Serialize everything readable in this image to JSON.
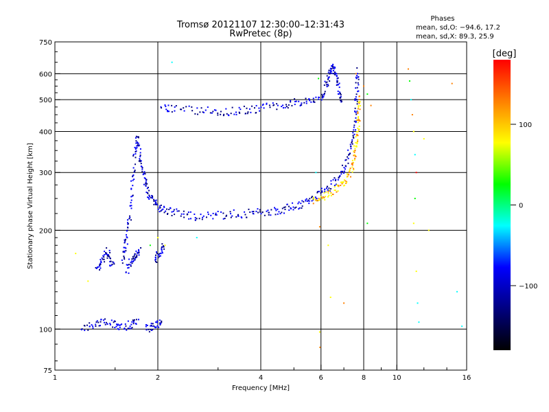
{
  "chart_data": {
    "type": "scatter",
    "title": "Tromsø 20121107 12:30:00–12:31:43",
    "subtitle": "RwPretec (8p)",
    "xlabel": "Frequency [MHz]",
    "ylabel": "Stationary phase Virtual Height [km]",
    "x_scale": "log",
    "y_scale": "log",
    "xlim": [
      1,
      16
    ],
    "ylim": [
      75,
      750
    ],
    "x_ticks": [
      1,
      2,
      4,
      6,
      8,
      10,
      16
    ],
    "x_tick_labels": [
      "1",
      "2",
      "4",
      "6",
      "8",
      "10",
      "16"
    ],
    "x_grid": [
      2,
      4,
      6,
      8,
      10
    ],
    "y_ticks": [
      75,
      100,
      200,
      300,
      400,
      500,
      600,
      750
    ],
    "y_tick_labels": [
      "75",
      "100",
      "200",
      "300",
      "400",
      "500",
      "600",
      "750"
    ],
    "y_grid": [
      100,
      200,
      300,
      400,
      500,
      600
    ],
    "grid": true,
    "info": {
      "heading": "Phases",
      "line_o": "mean, sd,O: −94.6, 17.2",
      "line_x": "mean, sd,X:  89.3, 25.9"
    },
    "colorbar": {
      "label": "[deg]",
      "range": [
        -180,
        180
      ],
      "ticks": [
        100,
        0,
        -100
      ],
      "tick_labels": [
        "100",
        "0",
        "−100"
      ],
      "colors": [
        "#ff0000",
        "#ff8000",
        "#ffff00",
        "#00ff00",
        "#00ffff",
        "#0000ff",
        "#000080",
        "#000000"
      ]
    },
    "series": [
      {
        "mode": "O",
        "traces": [
          [
            [
              1.33,
              150
            ],
            [
              1.36,
              160
            ],
            [
              1.4,
              168
            ],
            [
              1.43,
              172
            ],
            [
              1.45,
              160
            ],
            [
              1.48,
              155
            ]
          ],
          [
            [
              1.58,
              160
            ],
            [
              1.6,
              175
            ],
            [
              1.62,
              190
            ],
            [
              1.65,
              215
            ],
            [
              1.67,
              245
            ],
            [
              1.69,
              290
            ],
            [
              1.71,
              340
            ],
            [
              1.73,
              380
            ],
            [
              1.75,
              370
            ],
            [
              1.78,
              330
            ],
            [
              1.81,
              300
            ],
            [
              1.84,
              280
            ],
            [
              1.87,
              262
            ],
            [
              1.92,
              248
            ],
            [
              1.97,
              240
            ],
            [
              2.05,
              232
            ],
            [
              2.15,
              228
            ],
            [
              2.3,
              226
            ],
            [
              2.5,
              222
            ],
            [
              2.7,
              220
            ],
            [
              3.0,
              222
            ],
            [
              3.3,
              224
            ],
            [
              3.6,
              225
            ],
            [
              3.9,
              226
            ],
            [
              4.2,
              228
            ],
            [
              4.5,
              230
            ],
            [
              4.8,
              234
            ],
            [
              5.1,
              238
            ],
            [
              5.4,
              244
            ],
            [
              5.7,
              250
            ],
            [
              6.0,
              258
            ],
            [
              6.3,
              268
            ],
            [
              6.6,
              282
            ],
            [
              6.9,
              300
            ],
            [
              7.1,
              320
            ],
            [
              7.3,
              350
            ],
            [
              7.45,
              390
            ],
            [
              7.55,
              440
            ],
            [
              7.62,
              500
            ],
            [
              7.66,
              560
            ],
            [
              7.68,
              620
            ]
          ],
          [
            [
              1.62,
              150
            ],
            [
              1.66,
              158
            ],
            [
              1.7,
              165
            ],
            [
              1.74,
              170
            ],
            [
              1.78,
              175
            ]
          ],
          [
            [
              1.95,
              160
            ],
            [
              2.0,
              168
            ],
            [
              2.05,
              175
            ],
            [
              2.08,
              178
            ]
          ],
          [
            [
              1.2,
              100
            ],
            [
              1.28,
              102
            ],
            [
              1.36,
              105
            ],
            [
              1.44,
              104
            ],
            [
              1.52,
              103
            ],
            [
              1.6,
              102
            ],
            [
              1.68,
              104
            ],
            [
              1.75,
              106
            ]
          ],
          [
            [
              1.85,
              100
            ],
            [
              1.92,
              102
            ],
            [
              2.0,
              103
            ],
            [
              2.05,
              104
            ]
          ],
          [
            [
              2.05,
              470
            ],
            [
              2.2,
              468
            ],
            [
              2.5,
              465
            ],
            [
              2.8,
              462
            ],
            [
              3.1,
              460
            ],
            [
              3.4,
              462
            ],
            [
              3.7,
              466
            ],
            [
              4.0,
              472
            ],
            [
              4.4,
              478
            ],
            [
              4.8,
              485
            ],
            [
              5.2,
              492
            ],
            [
              5.6,
              500
            ],
            [
              6.0,
              510
            ],
            [
              6.2,
              520
            ]
          ],
          [
            [
              6.2,
              550
            ],
            [
              6.3,
              580
            ],
            [
              6.4,
              610
            ],
            [
              6.5,
              630
            ],
            [
              6.6,
              600
            ],
            [
              6.7,
              560
            ],
            [
              6.8,
              520
            ],
            [
              6.9,
              490
            ]
          ]
        ],
        "phase": -100
      },
      {
        "mode": "X",
        "traces": [
          [
            [
              5.7,
              245
            ],
            [
              6.0,
              250
            ],
            [
              6.3,
              258
            ],
            [
              6.6,
              266
            ],
            [
              6.9,
              274
            ],
            [
              7.1,
              285
            ],
            [
              7.3,
              300
            ],
            [
              7.45,
              320
            ],
            [
              7.55,
              345
            ],
            [
              7.62,
              370
            ],
            [
              7.68,
              400
            ],
            [
              7.72,
              440
            ],
            [
              7.76,
              480
            ],
            [
              7.8,
              510
            ]
          ]
        ],
        "phase": 100
      },
      {
        "mode": "scattered",
        "points": [
          [
            1.15,
            170
          ],
          [
            1.25,
            140
          ],
          [
            1.9,
            180
          ],
          [
            2.0,
            190
          ],
          [
            2.1,
            180
          ],
          [
            2.2,
            650
          ],
          [
            2.6,
            190
          ],
          [
            5.8,
            300
          ],
          [
            5.9,
            580
          ],
          [
            5.95,
            205
          ],
          [
            5.95,
            98
          ],
          [
            5.96,
            88
          ],
          [
            6.4,
            125
          ],
          [
            6.3,
            180
          ],
          [
            7.0,
            120
          ],
          [
            7.6,
            600
          ],
          [
            8.0,
            550
          ],
          [
            8.2,
            520
          ],
          [
            8.4,
            480
          ],
          [
            8.2,
            210
          ],
          [
            10.8,
            620
          ],
          [
            10.9,
            570
          ],
          [
            11.0,
            500
          ],
          [
            11.1,
            450
          ],
          [
            11.2,
            400
          ],
          [
            11.3,
            340
          ],
          [
            11.4,
            300
          ],
          [
            11.3,
            250
          ],
          [
            11.2,
            210
          ],
          [
            11.4,
            150
          ],
          [
            11.5,
            120
          ],
          [
            11.6,
            105
          ],
          [
            12.0,
            380
          ],
          [
            12.4,
            200
          ],
          [
            14.5,
            560
          ],
          [
            15.0,
            130
          ],
          [
            15.5,
            102
          ]
        ],
        "phase": 60
      }
    ]
  }
}
